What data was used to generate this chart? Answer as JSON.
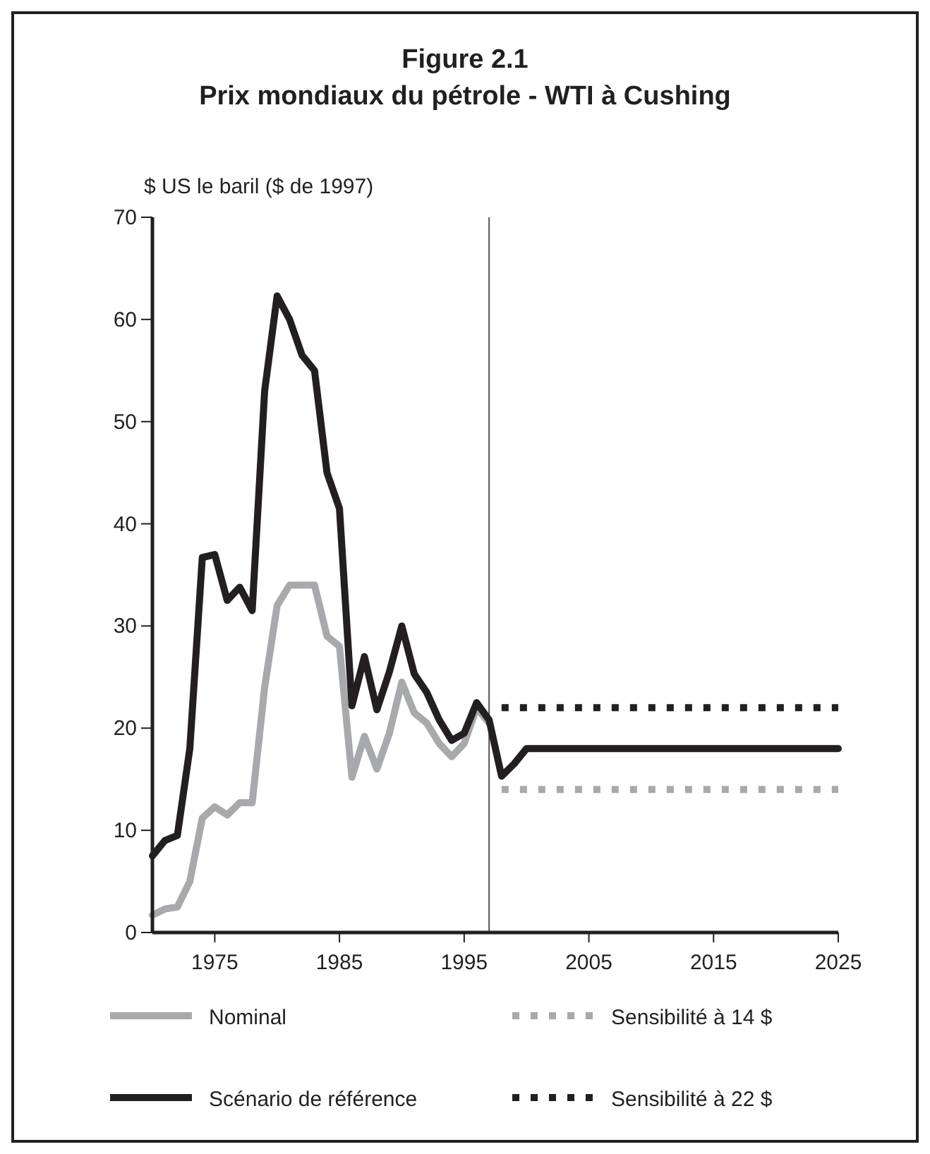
{
  "chart_data": {
    "type": "line",
    "title": "Figure 2.1\nPrix mondiaux du pétrole - WTI à Cushing",
    "ylabel": "$ US le baril ($ de 1997)",
    "xlim": [
      1970,
      2025
    ],
    "xticks": [
      1975,
      1985,
      1995,
      2005,
      2015,
      2025
    ],
    "ylim": [
      0,
      70
    ],
    "yticks": [
      0,
      10,
      20,
      30,
      40,
      50,
      60,
      70
    ],
    "grid": false,
    "legend": "bottom",
    "marker": "none",
    "ref_lines": [
      {
        "axis": "x",
        "value": 1997,
        "color": "#555555"
      }
    ],
    "series": [
      {
        "name": "Nominal",
        "color": "#a7a9ac",
        "line_style": "solid",
        "x": [
          1970,
          1971,
          1972,
          1973,
          1974,
          1975,
          1976,
          1977,
          1978,
          1979,
          1980,
          1981,
          1982,
          1983,
          1984,
          1985,
          1986,
          1987,
          1988,
          1989,
          1990,
          1991,
          1992,
          1993,
          1994,
          1995,
          1996,
          1997
        ],
        "values": [
          1.7,
          2.3,
          2.5,
          5,
          11.2,
          12.3,
          11.5,
          12.7,
          12.7,
          24,
          32,
          34,
          34,
          34,
          29,
          28,
          15.2,
          19.2,
          16,
          19.5,
          24.5,
          21.5,
          20.5,
          18.5,
          17.2,
          18.5,
          22,
          20.5
        ]
      },
      {
        "name": "Sensibilité à 14 $",
        "color": "#a7a9ac",
        "line_style": "dotted",
        "x": [
          1998,
          2025
        ],
        "values": [
          14,
          14
        ]
      },
      {
        "name": "Scénario de référence",
        "color": "#231f20",
        "line_style": "solid",
        "x": [
          1970,
          1971,
          1972,
          1973,
          1974,
          1975,
          1976,
          1977,
          1978,
          1979,
          1980,
          1981,
          1982,
          1983,
          1984,
          1985,
          1986,
          1987,
          1988,
          1989,
          1990,
          1991,
          1992,
          1993,
          1994,
          1995,
          1996,
          1997,
          1998,
          1999,
          2000,
          2025
        ],
        "values": [
          7.5,
          9,
          9.5,
          18,
          36.7,
          37,
          32.5,
          33.8,
          31.5,
          53,
          62.3,
          60,
          56.5,
          55,
          45,
          41.5,
          22.2,
          27,
          21.8,
          25.5,
          30,
          25.3,
          23.5,
          20.8,
          18.8,
          19.5,
          22.5,
          20.8,
          15.3,
          16.5,
          18,
          18
        ]
      },
      {
        "name": "Sensibilité à 22 $",
        "color": "#231f20",
        "line_style": "dotted",
        "x": [
          1998,
          2025
        ],
        "values": [
          22,
          22
        ]
      }
    ]
  }
}
